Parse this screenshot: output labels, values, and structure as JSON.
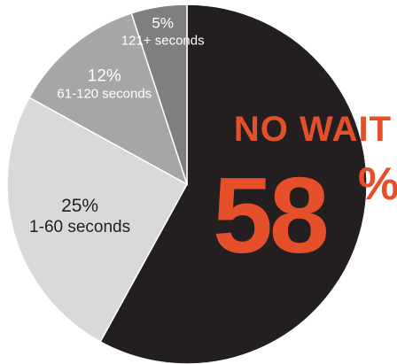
{
  "chart_data": {
    "type": "pie",
    "title": "",
    "slices": [
      {
        "label": "No wait",
        "value": 58,
        "display": "58",
        "color": "#231f20",
        "pct_label": "",
        "desc_label": ""
      },
      {
        "label": "1-60 seconds",
        "value": 25,
        "color": "#d9d9d9",
        "pct_label": "25%",
        "desc_label": "1-60 seconds",
        "text_color": "#231f20"
      },
      {
        "label": "61-120 seconds",
        "value": 12,
        "color": "#a6a6a6",
        "pct_label": "12%",
        "desc_label": "61-120 seconds",
        "text_color": "#ffffff"
      },
      {
        "label": "121+ seconds",
        "value": 5,
        "color": "#7f7f7f",
        "pct_label": "5%",
        "desc_label": "121+ seconds",
        "text_color": "#ffffff"
      }
    ],
    "callout": {
      "heading": "NO WAIT",
      "value": "58",
      "suffix": "%",
      "color": "#e5502a"
    }
  }
}
